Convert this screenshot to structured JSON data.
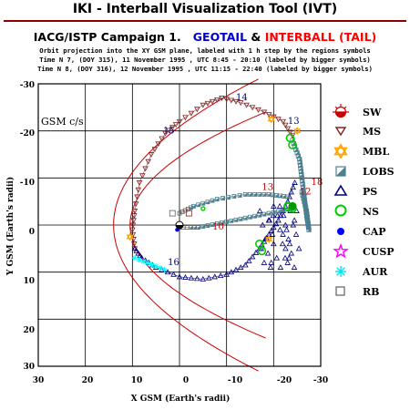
{
  "app_title": "IKI - Interball Visualization Tool (IVT)",
  "campaign": {
    "prefix": "IACG/ISTP Campaign 1.",
    "sc1": "GEOTAIL",
    "amp": "&",
    "sc2": "INTERBALL (TAIL)",
    "sc1_color": "#0000cc",
    "sc2_color": "#ff0000"
  },
  "info_lines": [
    "Orbit projection into the XY GSM plane, labeled with 1 h step by the regions symbols",
    "Time N 7, (DOY 315), 11 November 1995 , UTC 8:45 - 20:10 (labeled by bigger symbols)",
    "Time N 8, (DOY 316), 12 November 1995 , UTC 11:15 - 22:40 (labeled by bigger symbols)"
  ],
  "plot": {
    "coord_label": "GSM c/s",
    "xlabel": "X GSM (Earth's radii)",
    "ylabel": "Y GSM (Earth's radii)",
    "x_ticks": [
      "30",
      "20",
      "10",
      "0",
      "-10",
      "-20",
      "-30"
    ],
    "y_ticks": [
      "-30",
      "-20",
      "-10",
      "0",
      "10",
      "20",
      "30"
    ],
    "xlim": [
      30,
      -30
    ],
    "ylim": [
      -30,
      30
    ],
    "time_labels": [
      {
        "text": "14",
        "x": -12,
        "y": -26.5,
        "color": "#000080"
      },
      {
        "text": "13",
        "x": -23,
        "y": -21.5,
        "color": "#000080"
      },
      {
        "text": "15",
        "x": 3.5,
        "y": -19.5,
        "color": "#000080"
      },
      {
        "text": "16",
        "x": 2.5,
        "y": 8.5,
        "color": "#000080"
      },
      {
        "text": "13",
        "x": -17.5,
        "y": -7.5,
        "color": "#cc0000"
      },
      {
        "text": "12",
        "x": -25.5,
        "y": -6.5,
        "color": "#cc0000"
      },
      {
        "text": "10",
        "x": -7,
        "y": 1.0,
        "color": "#cc0000"
      },
      {
        "text": "18",
        "x": -28,
        "y": -8.5,
        "color": "#cc0000"
      }
    ]
  },
  "legend": [
    {
      "label": "SW",
      "icon": "sun-icon"
    },
    {
      "label": "MS",
      "icon": "down-triangle-icon"
    },
    {
      "label": "MBL",
      "icon": "star-of-david-icon"
    },
    {
      "label": "LOBS",
      "icon": "half-filled-square-icon"
    },
    {
      "label": "PS",
      "icon": "up-triangle-icon"
    },
    {
      "label": "NS",
      "icon": "circle-icon"
    },
    {
      "label": "CAP",
      "icon": "filled-circle-icon"
    },
    {
      "label": "CUSP",
      "icon": "star-icon"
    },
    {
      "label": "AUR",
      "icon": "asterisk-icon"
    },
    {
      "label": "RB",
      "icon": "square-icon"
    }
  ],
  "colors": {
    "boundary": "#cc0000",
    "grid": "#000000",
    "ms": "#7f2020",
    "ps": "#000080",
    "mbl": "#ffa500",
    "lobs": "#4a7f8f",
    "ns": "#00cc00",
    "cap": "#0000ff",
    "cusp": "#ff00ff",
    "aur": "#00ffff",
    "rb": "#606060"
  }
}
